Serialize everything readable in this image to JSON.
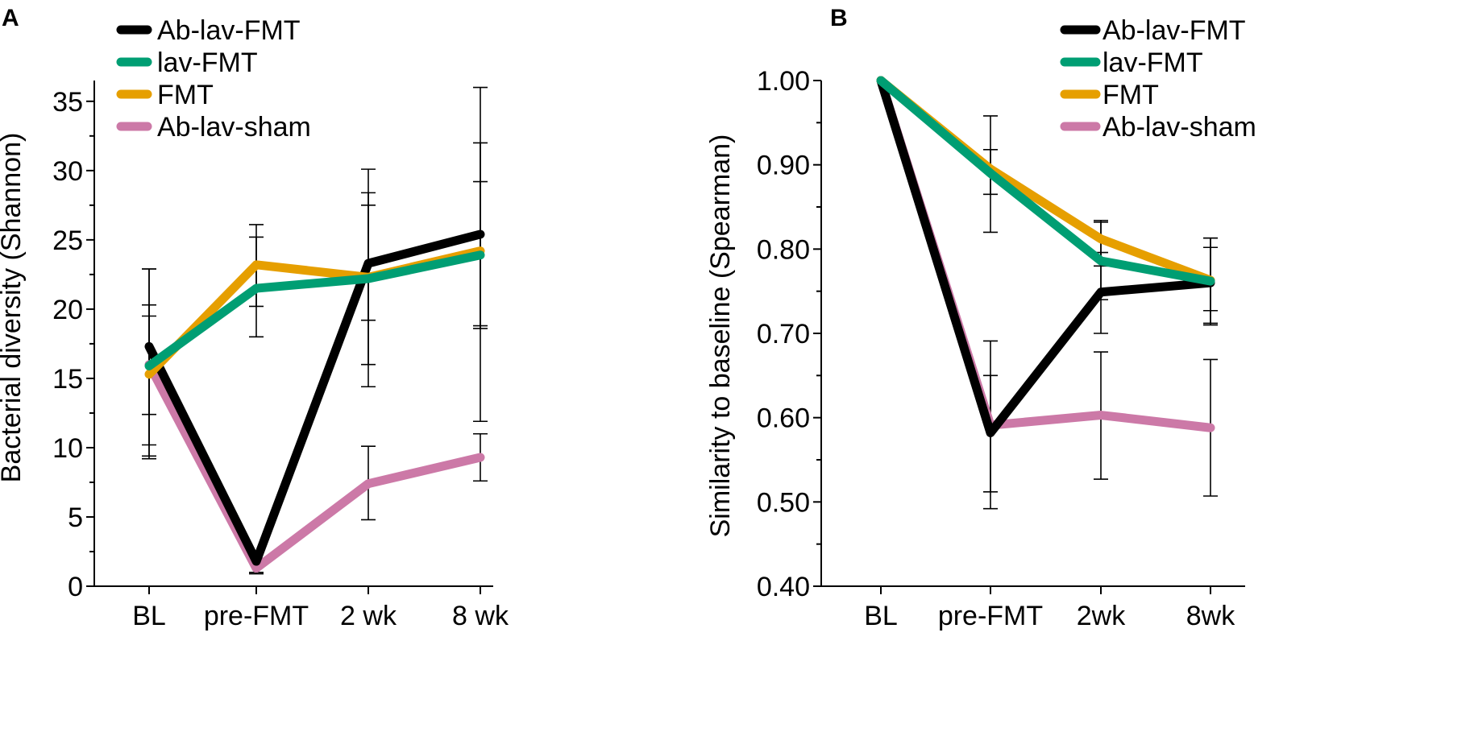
{
  "chart_data": [
    {
      "panel": "A",
      "type": "line",
      "title": "",
      "xlabel": "",
      "ylabel": "Bacterial diversity (Shannon)",
      "categories": [
        "BL",
        "pre-FMT",
        "2 wk",
        "8 wk"
      ],
      "ylim": [
        0,
        36.5
      ],
      "yticks": [
        0,
        5,
        10,
        15,
        20,
        25,
        30,
        35
      ],
      "ytick_labels": [
        "0",
        "5",
        "10",
        "15",
        "20",
        "25",
        "30",
        "35"
      ],
      "legend_position": "top-left",
      "series": [
        {
          "name": "Ab-lav-sham",
          "color": "#CC79A7",
          "values": [
            16.0,
            1.3,
            7.4,
            9.3
          ],
          "err_lo": [
            9.4,
            1.0,
            4.8,
            7.6
          ],
          "err_hi": [
            22.9,
            1.7,
            10.1,
            11.0
          ]
        },
        {
          "name": "Ab-lav-FMT",
          "color": "#000000",
          "values": [
            17.3,
            1.8,
            23.3,
            25.4
          ],
          "err_lo": [
            12.4,
            0.9,
            16.0,
            11.9
          ],
          "err_hi": [
            22.9,
            2.0,
            30.1,
            36.0
          ]
        },
        {
          "name": "FMT",
          "color": "#E69F00",
          "values": [
            15.3,
            23.2,
            22.3,
            24.2
          ],
          "err_lo": [
            10.2,
            20.2,
            14.4,
            18.6
          ],
          "err_hi": [
            20.3,
            26.1,
            28.4,
            29.2
          ]
        },
        {
          "name": "lav-FMT",
          "color": "#009E73",
          "values": [
            15.9,
            21.5,
            22.2,
            23.9
          ],
          "err_lo": [
            9.2,
            18.0,
            19.2,
            18.8
          ],
          "err_hi": [
            19.5,
            25.2,
            27.5,
            32.0
          ]
        }
      ],
      "legend_order": [
        "Ab-lav-FMT",
        "lav-FMT",
        "FMT",
        "Ab-lav-sham"
      ]
    },
    {
      "panel": "B",
      "type": "line",
      "title": "",
      "xlabel": "",
      "ylabel": "Similarity to baseline (Spearman)",
      "categories": [
        "BL",
        "pre-FMT",
        "2wk",
        "8wk"
      ],
      "ylim": [
        0.4,
        1.0
      ],
      "yticks": [
        0.4,
        0.5,
        0.6,
        0.7,
        0.8,
        0.9,
        1.0
      ],
      "ytick_labels": [
        "0.40",
        "0.50",
        "0.60",
        "0.70",
        "0.80",
        "0.90",
        "1.00"
      ],
      "legend_position": "top-right",
      "series": [
        {
          "name": "Ab-lav-sham",
          "color": "#CC79A7",
          "values": [
            1.0,
            0.591,
            0.603,
            0.588
          ],
          "err_lo": [
            null,
            0.492,
            0.527,
            0.507
          ],
          "err_hi": [
            null,
            0.691,
            0.678,
            0.669
          ]
        },
        {
          "name": "Ab-lav-FMT",
          "color": "#000000",
          "values": [
            1.0,
            0.582,
            0.749,
            0.76
          ],
          "err_lo": [
            null,
            0.512,
            0.7,
            0.71
          ],
          "err_hi": [
            null,
            0.65,
            0.796,
            0.802
          ]
        },
        {
          "name": "FMT",
          "color": "#E69F00",
          "values": [
            1.0,
            0.895,
            0.812,
            0.763
          ],
          "err_lo": [
            null,
            0.82,
            0.74,
            0.727
          ],
          "err_hi": [
            null,
            0.958,
            0.834,
            0.813
          ]
        },
        {
          "name": "lav-FMT",
          "color": "#009E73",
          "values": [
            1.0,
            0.89,
            0.786,
            0.762
          ],
          "err_lo": [
            null,
            0.865,
            0.78,
            0.712
          ],
          "err_hi": [
            null,
            0.918,
            0.832,
            0.813
          ]
        }
      ],
      "legend_order": [
        "Ab-lav-FMT",
        "lav-FMT",
        "FMT",
        "Ab-lav-sham"
      ]
    }
  ]
}
